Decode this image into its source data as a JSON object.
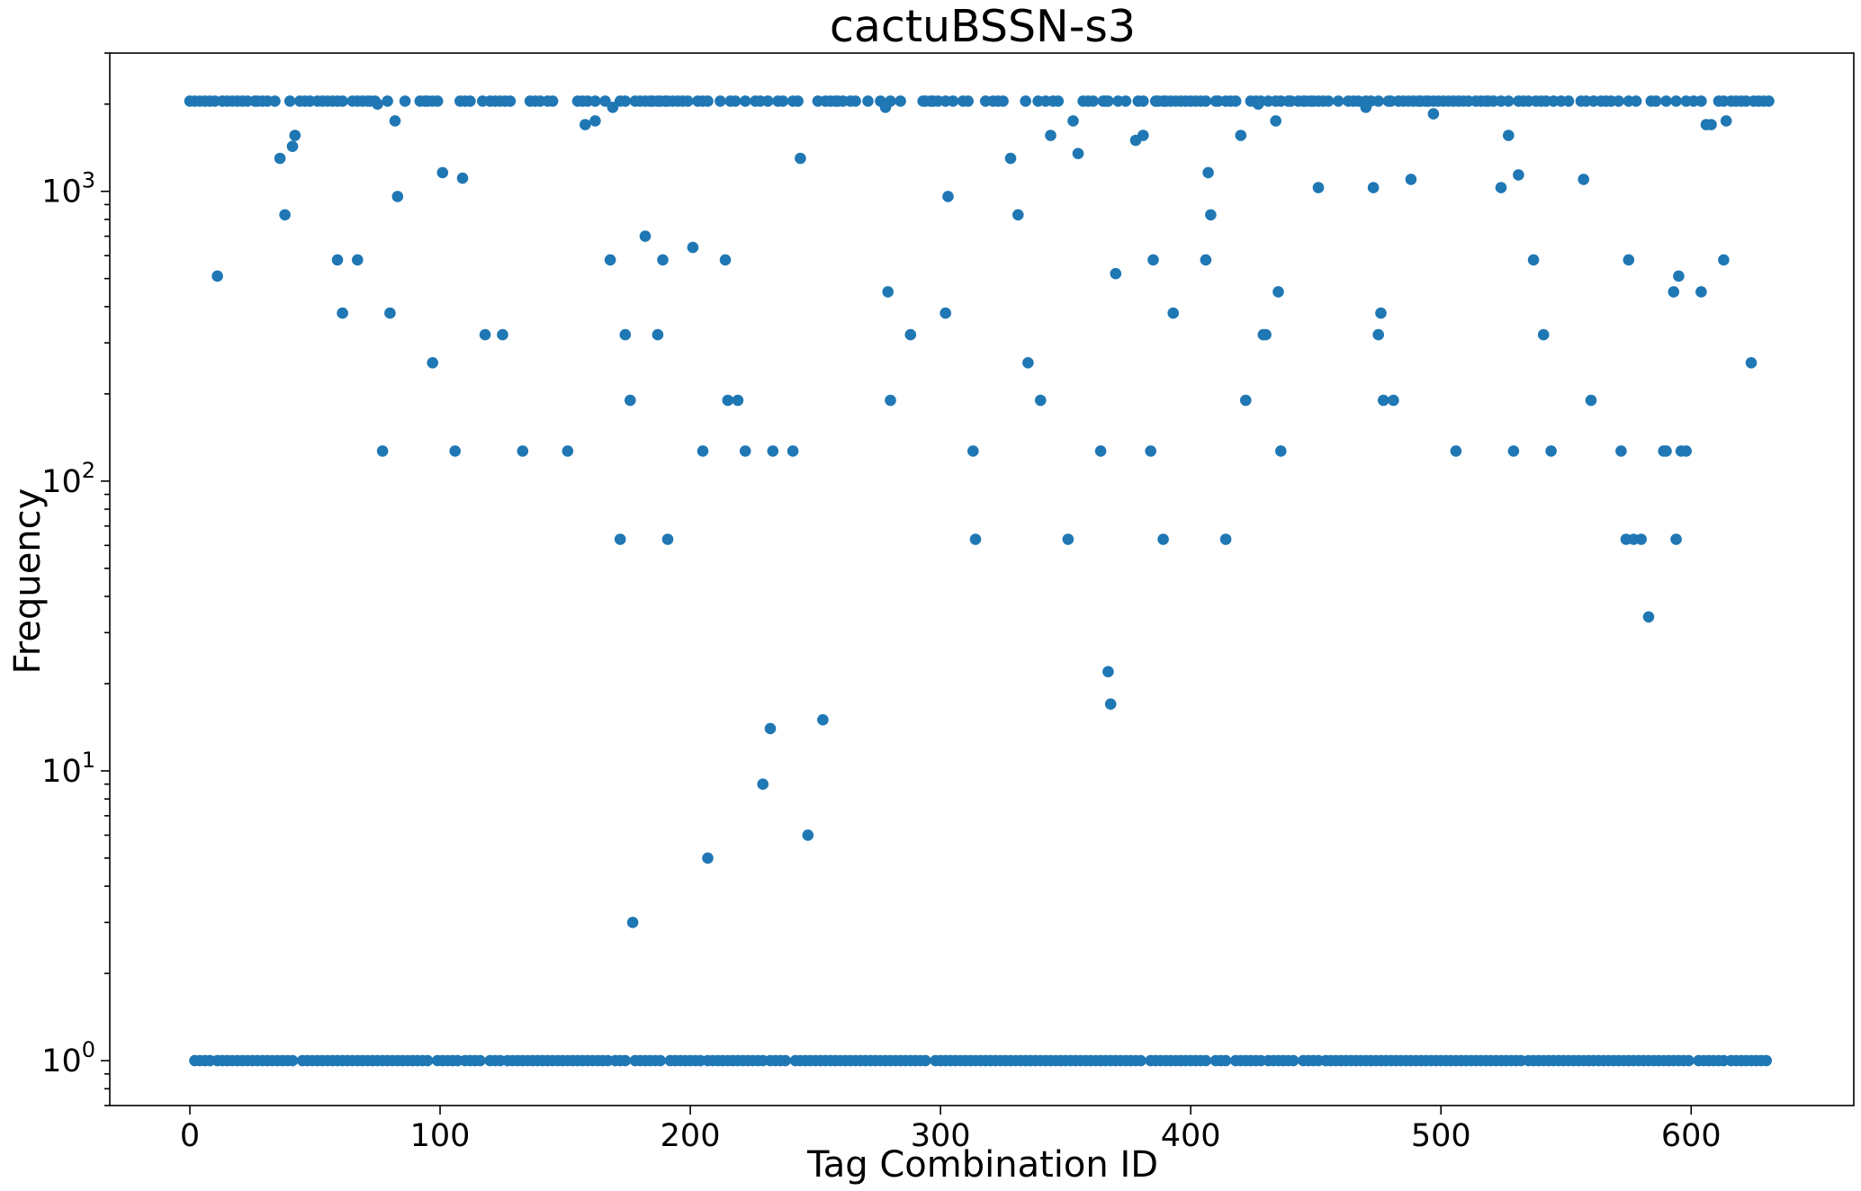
{
  "chart_data": {
    "type": "scatter",
    "title": "cactuBSSN-s3",
    "xlabel": "Tag Combination ID",
    "ylabel": "Frequency",
    "yscale": "log",
    "xlim": [
      -32,
      665
    ],
    "ylim": [
      0.7,
      3000
    ],
    "xticks": [
      0,
      100,
      200,
      300,
      400,
      500,
      600
    ],
    "yticks": [
      {
        "base": "10",
        "exp": "0",
        "value": 1
      },
      {
        "base": "10",
        "exp": "1",
        "value": 10
      },
      {
        "base": "10",
        "exp": "2",
        "value": 100
      },
      {
        "base": "10",
        "exp": "3",
        "value": 1000
      }
    ],
    "grid": false,
    "legend": "none",
    "color": "#1f77b4",
    "high_points": {
      "y": 2048,
      "x": [
        0,
        2,
        4,
        6,
        8,
        10,
        13,
        15,
        17,
        19,
        21,
        23,
        26,
        27,
        29,
        31,
        34,
        40,
        44,
        46,
        48,
        51,
        53,
        55,
        57,
        59,
        61,
        65,
        67,
        69,
        71,
        72,
        74,
        79,
        86,
        92,
        94,
        95,
        97,
        99,
        108,
        110,
        112,
        117,
        120,
        122,
        124,
        126,
        128,
        136,
        138,
        140,
        143,
        145,
        155,
        157,
        159,
        162,
        166,
        172,
        174,
        178,
        180,
        182,
        184,
        185,
        187,
        188,
        190,
        191,
        193,
        195,
        197,
        199,
        203,
        205,
        207,
        212,
        216,
        218,
        222,
        226,
        228,
        231,
        235,
        237,
        241,
        243,
        251,
        254,
        256,
        258,
        259,
        261,
        264,
        266,
        271,
        276,
        280,
        284,
        293,
        294,
        296,
        297,
        299,
        302,
        305,
        309,
        311,
        318,
        321,
        323,
        325,
        334,
        339,
        342,
        345,
        347,
        357,
        359,
        361,
        365,
        366,
        367,
        371,
        374,
        379,
        381,
        386,
        387,
        389,
        390,
        392,
        394,
        396,
        398,
        400,
        402,
        404,
        406,
        410,
        411,
        414,
        416,
        418,
        424,
        426,
        428,
        431,
        434,
        436,
        439,
        440,
        443,
        445,
        446,
        448,
        449,
        451,
        453,
        455,
        459,
        463,
        465,
        467,
        470,
        472,
        475,
        479,
        480,
        483,
        485,
        487,
        489,
        491,
        492,
        494,
        495,
        497,
        499,
        501,
        503,
        505,
        507,
        509,
        511,
        514,
        516,
        518,
        519,
        521,
        524,
        527,
        531,
        533,
        535,
        538,
        540,
        542,
        545,
        548,
        551,
        556,
        558,
        561,
        564,
        566,
        568,
        571,
        575,
        578,
        584,
        586,
        590,
        594,
        598,
        601,
        604,
        611,
        613,
        616,
        618,
        620,
        622,
        625,
        627,
        629,
        631
      ]
    },
    "low_points": {
      "y": 1,
      "x": [
        2,
        4,
        6,
        8,
        11,
        13,
        15,
        17,
        19,
        21,
        23,
        25,
        27,
        29,
        31,
        33,
        35,
        37,
        39,
        41,
        45,
        47,
        49,
        51,
        53,
        55,
        57,
        59,
        61,
        63,
        65,
        67,
        69,
        71,
        73,
        75,
        77,
        79,
        81,
        83,
        85,
        87,
        89,
        91,
        93,
        95,
        99,
        101,
        103,
        105,
        107,
        110,
        112,
        114,
        116,
        120,
        122,
        124,
        127,
        129,
        131,
        133,
        135,
        137,
        139,
        141,
        143,
        145,
        147,
        149,
        151,
        153,
        155,
        157,
        159,
        161,
        163,
        165,
        167,
        170,
        172,
        174,
        178,
        180,
        182,
        184,
        186,
        188,
        192,
        194,
        196,
        198,
        200,
        202,
        204,
        207,
        209,
        211,
        213,
        215,
        217,
        219,
        221,
        223,
        225,
        227,
        229,
        232,
        234,
        236,
        238,
        242,
        244,
        246,
        248,
        250,
        252,
        254,
        256,
        258,
        260,
        262,
        264,
        266,
        268,
        270,
        272,
        274,
        276,
        278,
        280,
        282,
        284,
        286,
        288,
        290,
        292,
        294,
        298,
        300,
        302,
        304,
        306,
        308,
        310,
        312,
        314,
        316,
        318,
        320,
        322,
        324,
        326,
        328,
        330,
        332,
        334,
        336,
        338,
        340,
        342,
        344,
        346,
        348,
        350,
        352,
        354,
        356,
        358,
        360,
        362,
        364,
        366,
        368,
        370,
        372,
        374,
        376,
        378,
        380,
        384,
        386,
        388,
        390,
        392,
        394,
        396,
        398,
        400,
        402,
        404,
        406,
        410,
        412,
        414,
        418,
        420,
        422,
        424,
        426,
        428,
        431,
        433,
        435,
        437,
        439,
        441,
        445,
        447,
        449,
        451,
        454,
        456,
        458,
        460,
        462,
        464,
        466,
        468,
        470,
        472,
        474,
        476,
        478,
        480,
        482,
        484,
        486,
        488,
        490,
        492,
        494,
        496,
        498,
        500,
        502,
        504,
        506,
        508,
        510,
        512,
        514,
        516,
        518,
        520,
        522,
        524,
        526,
        528,
        530,
        532,
        535,
        537,
        539,
        541,
        543,
        545,
        547,
        549,
        551,
        553,
        555,
        557,
        559,
        561,
        563,
        565,
        567,
        569,
        571,
        573,
        575,
        577,
        579,
        581,
        583,
        585,
        587,
        589,
        591,
        593,
        595,
        597,
        599,
        603,
        605,
        607,
        609,
        611,
        613,
        616,
        618,
        620,
        622,
        624,
        626,
        628,
        630
      ]
    },
    "mid_points": [
      [
        11,
        510
      ],
      [
        36,
        1300
      ],
      [
        38,
        830
      ],
      [
        41,
        1430
      ],
      [
        42,
        1560
      ],
      [
        59,
        580
      ],
      [
        61,
        380
      ],
      [
        67,
        580
      ],
      [
        75,
        2000
      ],
      [
        77,
        127
      ],
      [
        80,
        380
      ],
      [
        82,
        1750
      ],
      [
        83,
        960
      ],
      [
        97,
        256
      ],
      [
        101,
        1160
      ],
      [
        106,
        127
      ],
      [
        109,
        1110
      ],
      [
        118,
        320
      ],
      [
        125,
        320
      ],
      [
        133,
        127
      ],
      [
        151,
        127
      ],
      [
        158,
        1700
      ],
      [
        162,
        1750
      ],
      [
        168,
        580
      ],
      [
        169,
        1950
      ],
      [
        172,
        63
      ],
      [
        174,
        320
      ],
      [
        176,
        190
      ],
      [
        177,
        3
      ],
      [
        182,
        700
      ],
      [
        187,
        320
      ],
      [
        189,
        580
      ],
      [
        191,
        63
      ],
      [
        201,
        640
      ],
      [
        205,
        127
      ],
      [
        207,
        5
      ],
      [
        214,
        580
      ],
      [
        215,
        190
      ],
      [
        219,
        190
      ],
      [
        222,
        127
      ],
      [
        229,
        9
      ],
      [
        232,
        14
      ],
      [
        233,
        127
      ],
      [
        241,
        127
      ],
      [
        244,
        1300
      ],
      [
        247,
        6
      ],
      [
        253,
        15
      ],
      [
        278,
        1950
      ],
      [
        279,
        450
      ],
      [
        280,
        190
      ],
      [
        288,
        320
      ],
      [
        302,
        380
      ],
      [
        303,
        960
      ],
      [
        313,
        127
      ],
      [
        314,
        63
      ],
      [
        328,
        1300
      ],
      [
        331,
        830
      ],
      [
        335,
        256
      ],
      [
        340,
        190
      ],
      [
        344,
        1560
      ],
      [
        351,
        63
      ],
      [
        353,
        1750
      ],
      [
        355,
        1350
      ],
      [
        364,
        127
      ],
      [
        367,
        22
      ],
      [
        368,
        17
      ],
      [
        370,
        520
      ],
      [
        378,
        1500
      ],
      [
        381,
        1560
      ],
      [
        384,
        127
      ],
      [
        385,
        580
      ],
      [
        389,
        63
      ],
      [
        393,
        380
      ],
      [
        406,
        580
      ],
      [
        407,
        1160
      ],
      [
        408,
        830
      ],
      [
        414,
        63
      ],
      [
        420,
        1560
      ],
      [
        422,
        190
      ],
      [
        427,
        2000
      ],
      [
        429,
        320
      ],
      [
        430,
        320
      ],
      [
        434,
        1750
      ],
      [
        435,
        450
      ],
      [
        436,
        127
      ],
      [
        451,
        1030
      ],
      [
        470,
        1950
      ],
      [
        473,
        1030
      ],
      [
        475,
        320
      ],
      [
        476,
        380
      ],
      [
        477,
        190
      ],
      [
        481,
        190
      ],
      [
        488,
        1100
      ],
      [
        497,
        1850
      ],
      [
        506,
        127
      ],
      [
        524,
        1030
      ],
      [
        527,
        1560
      ],
      [
        529,
        127
      ],
      [
        531,
        1140
      ],
      [
        537,
        580
      ],
      [
        541,
        320
      ],
      [
        544,
        127
      ],
      [
        557,
        1100
      ],
      [
        560,
        190
      ],
      [
        572,
        127
      ],
      [
        574,
        63
      ],
      [
        575,
        580
      ],
      [
        577,
        63
      ],
      [
        580,
        63
      ],
      [
        583,
        34
      ],
      [
        589,
        127
      ],
      [
        590,
        127
      ],
      [
        593,
        450
      ],
      [
        594,
        63
      ],
      [
        595,
        510
      ],
      [
        596,
        127
      ],
      [
        598,
        127
      ],
      [
        604,
        450
      ],
      [
        606,
        1700
      ],
      [
        608,
        1700
      ],
      [
        613,
        580
      ],
      [
        614,
        1750
      ],
      [
        624,
        256
      ]
    ]
  }
}
